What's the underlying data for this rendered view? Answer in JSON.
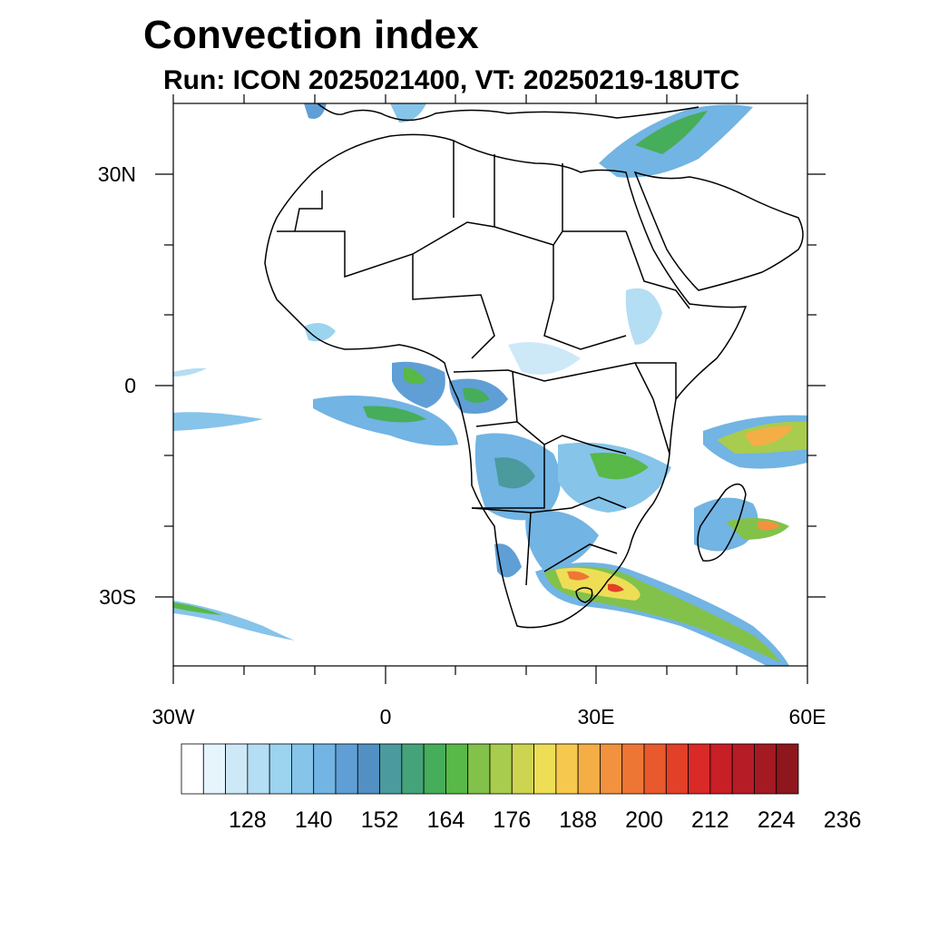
{
  "title": "Convection index",
  "subtitle": "Run: ICON 2025021400,  VT: 20250219-18UTC",
  "axes": {
    "lat_labels": [
      "30N",
      "0",
      "30S"
    ],
    "lon_labels": [
      "30W",
      "0",
      "30E",
      "60E"
    ]
  },
  "colorbar": {
    "labels": [
      "128",
      "140",
      "152",
      "164",
      "176",
      "188",
      "200",
      "212",
      "224",
      "236"
    ],
    "colors": [
      "#ffffff",
      "#e6f4fb",
      "#cde9f7",
      "#b4def3",
      "#9cd3ef",
      "#86c4ea",
      "#72b4e3",
      "#5f9fd6",
      "#5290c3",
      "#4a9a9e",
      "#45a37a",
      "#46ad5a",
      "#58b848",
      "#82c24a",
      "#a8cc4e",
      "#cdd450",
      "#eede55",
      "#f6c84e",
      "#f5ad46",
      "#f2923e",
      "#ee7635",
      "#e8592d",
      "#e24028",
      "#d92a27",
      "#c81f26",
      "#b61c25",
      "#a31a22",
      "#8e161d"
    ]
  },
  "chart_data": {
    "type": "heatmap",
    "title": "Convection index",
    "subtitle": "Run: ICON 2025021400,  VT: 20250219-18UTC",
    "x_range": [
      -30,
      60
    ],
    "y_range": [
      -40,
      40
    ],
    "x_ticks": [
      "30W",
      "0",
      "30E",
      "60E"
    ],
    "y_ticks": [
      "30N",
      "0",
      "30S"
    ],
    "colorbar_ticks": [
      128,
      140,
      152,
      164,
      176,
      188,
      200,
      212,
      224,
      236
    ]
  }
}
